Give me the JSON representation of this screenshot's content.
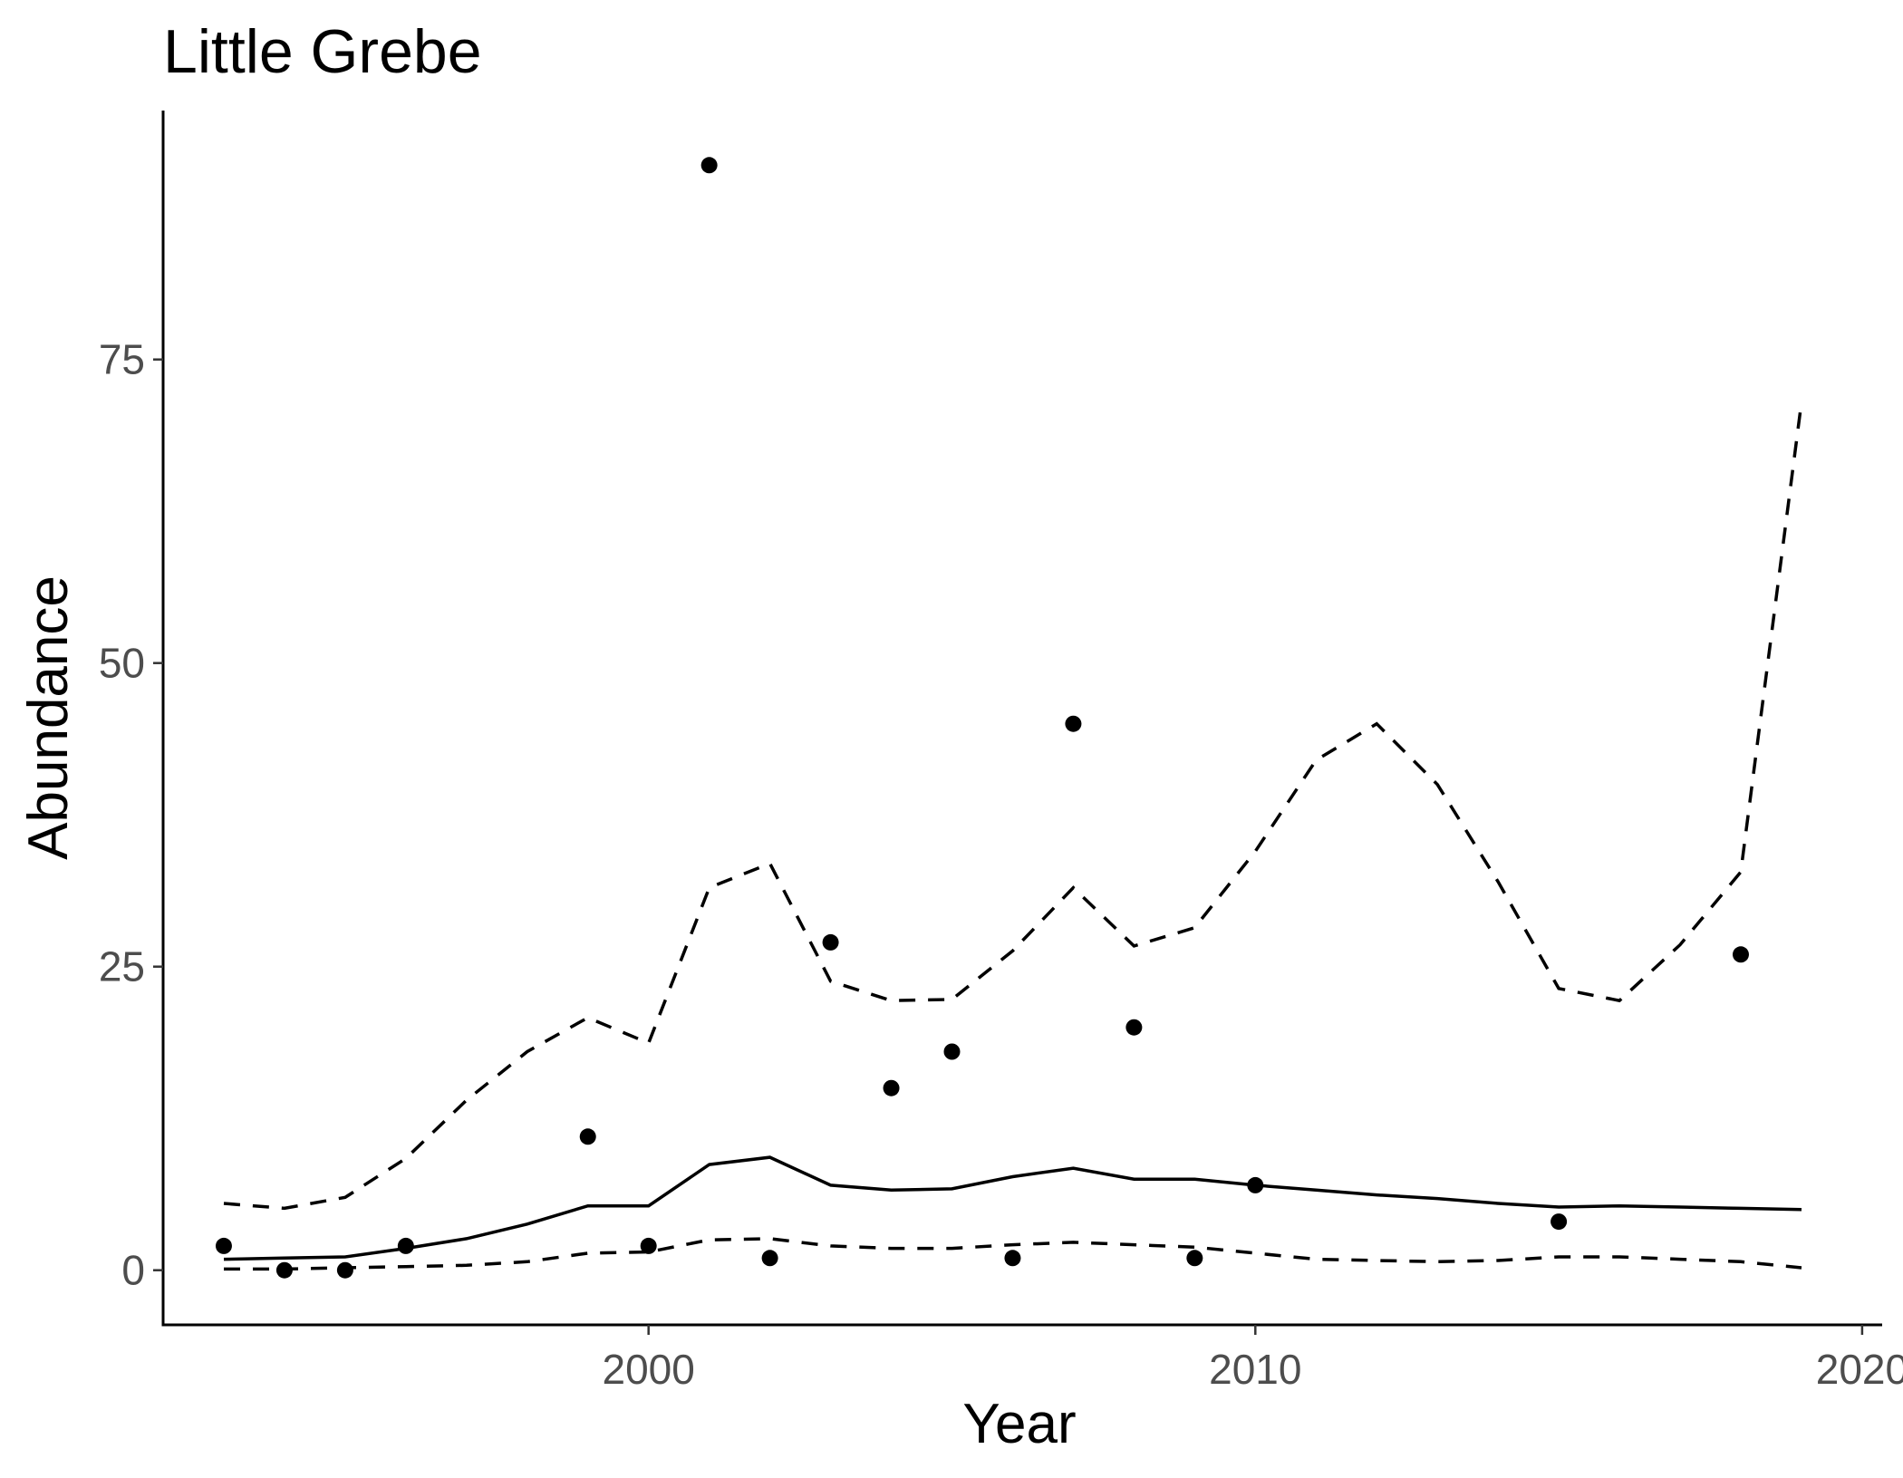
{
  "chart_data": {
    "type": "line",
    "title": "Little Grebe",
    "xlabel": "Year",
    "ylabel": "Abundance",
    "xlim": [
      1992,
      2020.3
    ],
    "ylim": [
      -4.5,
      95.5
    ],
    "x_ticks": [
      2000,
      2010,
      2020
    ],
    "x_tick_labels": [
      "2000",
      "2010",
      "2020"
    ],
    "y_ticks": [
      0,
      25,
      50,
      75
    ],
    "y_tick_labels": [
      "0",
      "25",
      "50",
      "75"
    ],
    "grid": false,
    "legend": "none",
    "x": [
      1993,
      1994,
      1995,
      1996,
      1997,
      1998,
      1999,
      2000,
      2001,
      2002,
      2003,
      2004,
      2005,
      2006,
      2007,
      2008,
      2009,
      2010,
      2011,
      2012,
      2013,
      2014,
      2015,
      2016,
      2017,
      2018,
      2019
    ],
    "series": [
      {
        "style": "solid",
        "values": [
          0.9,
          1.0,
          1.1,
          1.8,
          2.6,
          3.8,
          5.3,
          5.3,
          8.7,
          9.3,
          7.0,
          6.6,
          6.7,
          7.7,
          8.4,
          7.5,
          7.5,
          7.0,
          6.6,
          6.2,
          5.9,
          5.5,
          5.2,
          5.3,
          5.2,
          5.1,
          5.0
        ]
      },
      {
        "style": "dashed",
        "values": [
          5.5,
          5.1,
          6.0,
          9.2,
          14.0,
          18.0,
          20.8,
          18.7,
          31.5,
          33.5,
          23.8,
          22.2,
          22.3,
          26.3,
          31.5,
          26.7,
          28.2,
          34.5,
          42.0,
          45.0,
          40.0,
          32.0,
          23.2,
          22.2,
          26.8,
          32.8,
          71.5
        ]
      },
      {
        "style": "dashed",
        "values": [
          0.1,
          0.1,
          0.2,
          0.3,
          0.4,
          0.7,
          1.4,
          1.5,
          2.5,
          2.6,
          2.0,
          1.8,
          1.8,
          2.1,
          2.3,
          2.1,
          1.9,
          1.4,
          0.9,
          0.8,
          0.7,
          0.8,
          1.1,
          1.1,
          0.9,
          0.7,
          0.2
        ]
      }
    ],
    "points": {
      "x": [
        1993,
        1994,
        1995,
        1996,
        1999,
        2000,
        2001,
        2002,
        2003,
        2004,
        2005,
        2006,
        2007,
        2008,
        2009,
        2010,
        2015,
        2018
      ],
      "y": [
        2,
        0,
        0,
        2,
        11,
        2,
        91,
        1,
        27,
        15,
        18,
        1,
        45,
        20,
        1,
        7,
        4,
        26
      ]
    }
  },
  "colors": {
    "ink": "#000000",
    "tick_label": "#4d4d4d",
    "background": "#ffffff"
  }
}
